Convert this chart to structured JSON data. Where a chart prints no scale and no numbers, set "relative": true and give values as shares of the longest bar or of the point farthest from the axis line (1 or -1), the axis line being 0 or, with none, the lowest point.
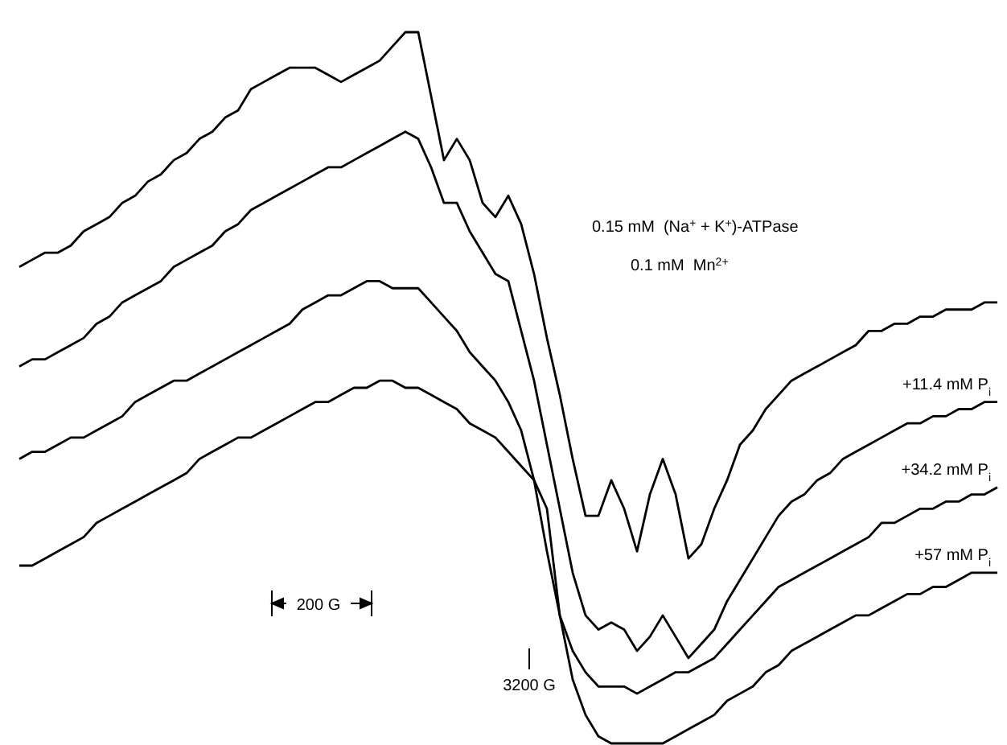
{
  "chart_data": {
    "type": "line",
    "relative": true,
    "legend": false,
    "categories": [
      null,
      null,
      null,
      null,
      null,
      null,
      null,
      null,
      null,
      null,
      null,
      null,
      null,
      null,
      null,
      null,
      null,
      null,
      null,
      null,
      null,
      null,
      null,
      null,
      null,
      null,
      null,
      null,
      null,
      null,
      null,
      null,
      null,
      null,
      null,
      null,
      null,
      null,
      null,
      null,
      null,
      null,
      null,
      null,
      null,
      null,
      null,
      null,
      null,
      null,
      null,
      null,
      null,
      null,
      null,
      null,
      null,
      null,
      null,
      null,
      null,
      null,
      null,
      null,
      null,
      null,
      null,
      null,
      null,
      null,
      null,
      null,
      null,
      null,
      null,
      null,
      null
    ],
    "annotations": [
      "0.15 mM  (Na$^{+}$ + K$^{+}$)-ATPase",
      "0.1 mM  Mn$^{2+}$",
      "200 G",
      "3200 G"
    ],
    "series": [
      {
        "color": "#000000",
        "values": [
          0.67,
          0.68,
          0.69,
          0.69,
          0.7,
          0.72,
          0.73,
          0.74,
          0.76,
          0.77,
          0.79,
          0.8,
          0.82,
          0.83,
          0.85,
          0.86,
          0.88,
          0.89,
          0.92,
          0.93,
          0.94,
          0.95,
          0.95,
          0.95,
          0.94,
          0.93,
          0.94,
          0.95,
          0.96,
          0.98,
          1.0,
          1.0,
          0.91,
          0.82,
          0.85,
          0.82,
          0.76,
          0.74,
          0.77,
          0.73,
          0.66,
          0.57,
          0.49,
          0.4,
          0.32,
          0.32,
          0.37,
          0.33,
          0.27,
          0.35,
          0.4,
          0.35,
          0.26,
          0.28,
          0.33,
          0.37,
          0.42,
          0.44,
          0.47,
          0.49,
          0.51,
          0.52,
          0.53,
          0.54,
          0.55,
          0.56,
          0.58,
          0.58,
          0.59,
          0.59,
          0.6,
          0.6,
          0.61,
          0.61,
          0.61,
          0.62,
          0.62
        ]
      },
      {
        "name": "+11.4 mM P$_{i}$",
        "color": "#000000",
        "values": [
          0.53,
          0.54,
          0.54,
          0.55,
          0.56,
          0.57,
          0.59,
          0.6,
          0.62,
          0.63,
          0.64,
          0.65,
          0.67,
          0.68,
          0.69,
          0.7,
          0.72,
          0.73,
          0.75,
          0.76,
          0.77,
          0.78,
          0.79,
          0.8,
          0.81,
          0.81,
          0.82,
          0.83,
          0.84,
          0.85,
          0.86,
          0.85,
          0.81,
          0.76,
          0.76,
          0.72,
          0.69,
          0.66,
          0.65,
          0.58,
          0.51,
          0.42,
          0.33,
          0.24,
          0.18,
          0.16,
          0.17,
          0.16,
          0.13,
          0.15,
          0.18,
          0.15,
          0.12,
          0.14,
          0.16,
          0.2,
          0.23,
          0.26,
          0.29,
          0.32,
          0.34,
          0.35,
          0.37,
          0.38,
          0.4,
          0.41,
          0.42,
          0.43,
          0.44,
          0.45,
          0.45,
          0.46,
          0.46,
          0.47,
          0.47,
          0.48,
          0.48
        ]
      },
      {
        "name": "+34.2 mM P$_{i}$",
        "color": "#000000",
        "values": [
          0.4,
          0.41,
          0.41,
          0.42,
          0.43,
          0.43,
          0.44,
          0.45,
          0.46,
          0.48,
          0.49,
          0.5,
          0.51,
          0.51,
          0.52,
          0.53,
          0.54,
          0.55,
          0.56,
          0.57,
          0.58,
          0.59,
          0.61,
          0.62,
          0.63,
          0.63,
          0.64,
          0.65,
          0.65,
          0.64,
          0.64,
          0.64,
          0.62,
          0.6,
          0.58,
          0.55,
          0.53,
          0.51,
          0.48,
          0.44,
          0.37,
          0.27,
          0.18,
          0.13,
          0.1,
          0.08,
          0.08,
          0.08,
          0.07,
          0.08,
          0.09,
          0.1,
          0.1,
          0.11,
          0.12,
          0.14,
          0.16,
          0.18,
          0.2,
          0.22,
          0.23,
          0.24,
          0.25,
          0.26,
          0.27,
          0.28,
          0.29,
          0.31,
          0.31,
          0.32,
          0.33,
          0.33,
          0.34,
          0.34,
          0.35,
          0.35,
          0.36
        ]
      },
      {
        "name": "+57 mM P$_{i}$",
        "color": "#000000",
        "values": [
          0.25,
          0.25,
          0.26,
          0.27,
          0.28,
          0.29,
          0.31,
          0.32,
          0.33,
          0.34,
          0.35,
          0.36,
          0.37,
          0.38,
          0.4,
          0.41,
          0.42,
          0.43,
          0.43,
          0.44,
          0.45,
          0.46,
          0.47,
          0.48,
          0.48,
          0.49,
          0.5,
          0.5,
          0.51,
          0.51,
          0.5,
          0.5,
          0.49,
          0.48,
          0.47,
          0.45,
          0.44,
          0.43,
          0.41,
          0.39,
          0.37,
          0.33,
          0.18,
          0.09,
          0.04,
          0.01,
          0.0,
          0.0,
          0.0,
          0.0,
          0.0,
          0.01,
          0.02,
          0.03,
          0.04,
          0.06,
          0.07,
          0.08,
          0.1,
          0.11,
          0.13,
          0.14,
          0.15,
          0.16,
          0.17,
          0.18,
          0.18,
          0.19,
          0.2,
          0.21,
          0.21,
          0.22,
          0.22,
          0.23,
          0.24,
          0.24,
          0.24
        ]
      }
    ]
  }
}
